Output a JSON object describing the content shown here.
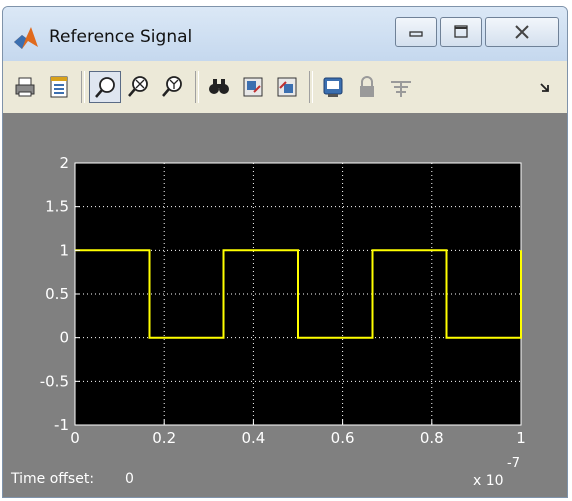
{
  "window": {
    "title": "Reference Signal"
  },
  "toolbar": {
    "buttons": [
      "print-icon",
      "parameters-icon",
      "zoom-icon",
      "zoom-x-icon",
      "zoom-y-icon",
      "autoscale-icon",
      "save-axes-icon",
      "restore-axes-icon",
      "floating-scope-icon",
      "lock-icon",
      "signal-selection-icon",
      "menu-arrow-icon"
    ]
  },
  "footer": {
    "time_offset_label": "Time offset:",
    "time_offset_value": "0",
    "exponent_base": "x 10",
    "exponent": "-7"
  },
  "colors": {
    "background": "#808080",
    "axes": "#000000",
    "signal": "#ffff00",
    "grid": "#ffffff"
  },
  "chart_data": {
    "type": "line",
    "xlim": [
      0,
      1
    ],
    "ylim": [
      -1,
      2
    ],
    "x_ticks": [
      "0",
      "0.2",
      "0.4",
      "0.6",
      "0.8",
      "1"
    ],
    "y_ticks": [
      "2",
      "1.5",
      "1",
      "0.5",
      "0",
      "-0.5",
      "-1"
    ],
    "x_tick_values": [
      0,
      0.2,
      0.4,
      0.6,
      0.8,
      1
    ],
    "y_tick_values": [
      2,
      1.5,
      1,
      0.5,
      0,
      -0.5,
      -1
    ],
    "grid": true,
    "series": [
      {
        "x": [
          0,
          0.167,
          0.167,
          0.333,
          0.333,
          0.5,
          0.5,
          0.667,
          0.667,
          0.833,
          0.833,
          1,
          1
        ],
        "y": [
          1,
          1,
          0,
          0,
          1,
          1,
          0,
          0,
          1,
          1,
          0,
          0,
          1
        ]
      }
    ]
  }
}
